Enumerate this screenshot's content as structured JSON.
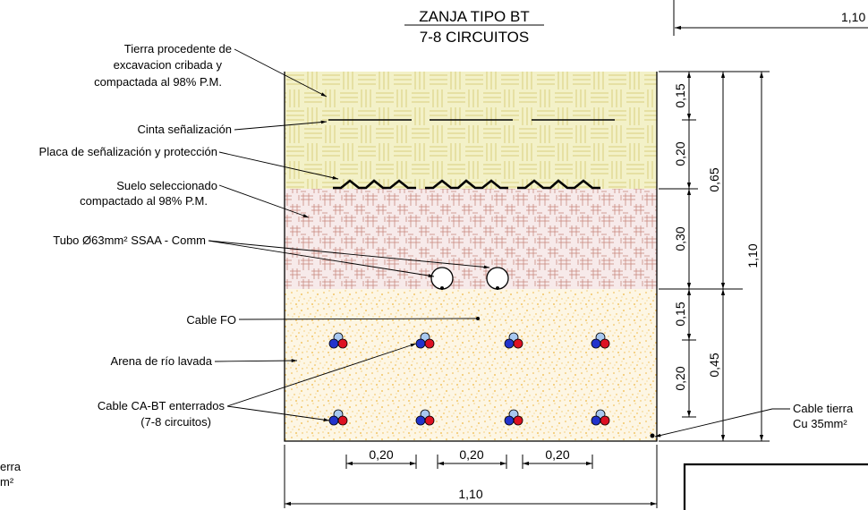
{
  "title": {
    "line1": "ZANJA TIPO BT",
    "line2": "7-8 CIRCUITOS"
  },
  "labels": {
    "tierra_1": "Tierra procedente de",
    "tierra_2": "excavacion cribada y",
    "tierra_3": "compactada al 98% P.M.",
    "cinta": "Cinta señalización",
    "placa": "Placa de señalización y protección",
    "suelo_1": "Suelo seleccionado",
    "suelo_2": "compactado al 98% P.M.",
    "tubo": "Tubo Ø63mm² SSAA - Comm",
    "cable_fo": "Cable FO",
    "arena": "Arena de río lavada",
    "cable_bt_1": "Cable CA-BT enterrados",
    "cable_bt_2": "(7-8 circuitos)",
    "cable_tierra_1": "Cable tierra",
    "cable_tierra_2": "Cu 35mm²",
    "left_cut_1": "erra",
    "left_cut_2": "m²"
  },
  "dimensions": {
    "top_right": "1,10",
    "v_015_a": "0,15",
    "v_020_a": "0,20",
    "v_030": "0,30",
    "v_015_b": "0,15",
    "v_020_b": "0,20",
    "v_065": "0,65",
    "v_045": "0,45",
    "v_110": "1,10",
    "h_020_a": "0,20",
    "h_020_b": "0,20",
    "h_020_c": "0,20",
    "h_110": "1,10"
  },
  "colors": {
    "tierra_fill": "#f3f1c8",
    "tierra_hatch": "#d8cf7e",
    "suelo_fill": "#f7eaea",
    "suelo_hatch": "#c98a80",
    "arena_fill": "#fdf6e4",
    "arena_dots": "#f0b640",
    "cable_blue": "#2233cc",
    "cable_red": "#dd1122",
    "cable_lightblue": "#a8c8f0"
  }
}
